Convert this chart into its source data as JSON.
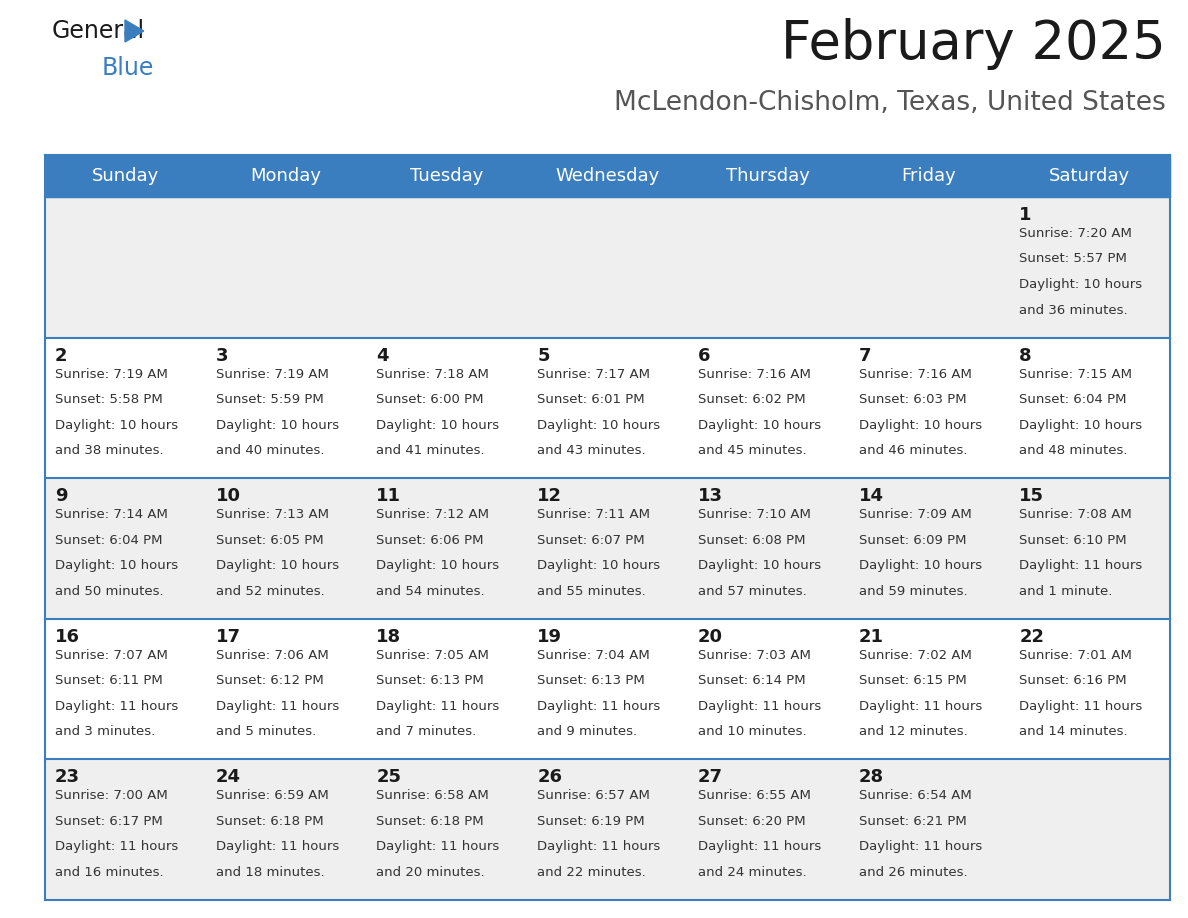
{
  "title": "February 2025",
  "subtitle": "McLendon-Chisholm, Texas, United States",
  "days_of_week": [
    "Sunday",
    "Monday",
    "Tuesday",
    "Wednesday",
    "Thursday",
    "Friday",
    "Saturday"
  ],
  "header_bg": "#3a7ebf",
  "header_text": "#ffffff",
  "cell_bg_odd": "#efefef",
  "cell_bg_even": "#ffffff",
  "cell_text": "#333333",
  "day_number_color": "#1a1a1a",
  "separator_color": "#3a7ebf",
  "calendar_data": [
    [
      null,
      null,
      null,
      null,
      null,
      null,
      {
        "day": 1,
        "sunrise": "7:20 AM",
        "sunset": "5:57 PM",
        "daylight": "10 hours and 36 minutes."
      }
    ],
    [
      {
        "day": 2,
        "sunrise": "7:19 AM",
        "sunset": "5:58 PM",
        "daylight": "10 hours and 38 minutes."
      },
      {
        "day": 3,
        "sunrise": "7:19 AM",
        "sunset": "5:59 PM",
        "daylight": "10 hours and 40 minutes."
      },
      {
        "day": 4,
        "sunrise": "7:18 AM",
        "sunset": "6:00 PM",
        "daylight": "10 hours and 41 minutes."
      },
      {
        "day": 5,
        "sunrise": "7:17 AM",
        "sunset": "6:01 PM",
        "daylight": "10 hours and 43 minutes."
      },
      {
        "day": 6,
        "sunrise": "7:16 AM",
        "sunset": "6:02 PM",
        "daylight": "10 hours and 45 minutes."
      },
      {
        "day": 7,
        "sunrise": "7:16 AM",
        "sunset": "6:03 PM",
        "daylight": "10 hours and 46 minutes."
      },
      {
        "day": 8,
        "sunrise": "7:15 AM",
        "sunset": "6:04 PM",
        "daylight": "10 hours and 48 minutes."
      }
    ],
    [
      {
        "day": 9,
        "sunrise": "7:14 AM",
        "sunset": "6:04 PM",
        "daylight": "10 hours and 50 minutes."
      },
      {
        "day": 10,
        "sunrise": "7:13 AM",
        "sunset": "6:05 PM",
        "daylight": "10 hours and 52 minutes."
      },
      {
        "day": 11,
        "sunrise": "7:12 AM",
        "sunset": "6:06 PM",
        "daylight": "10 hours and 54 minutes."
      },
      {
        "day": 12,
        "sunrise": "7:11 AM",
        "sunset": "6:07 PM",
        "daylight": "10 hours and 55 minutes."
      },
      {
        "day": 13,
        "sunrise": "7:10 AM",
        "sunset": "6:08 PM",
        "daylight": "10 hours and 57 minutes."
      },
      {
        "day": 14,
        "sunrise": "7:09 AM",
        "sunset": "6:09 PM",
        "daylight": "10 hours and 59 minutes."
      },
      {
        "day": 15,
        "sunrise": "7:08 AM",
        "sunset": "6:10 PM",
        "daylight": "11 hours and 1 minute."
      }
    ],
    [
      {
        "day": 16,
        "sunrise": "7:07 AM",
        "sunset": "6:11 PM",
        "daylight": "11 hours and 3 minutes."
      },
      {
        "day": 17,
        "sunrise": "7:06 AM",
        "sunset": "6:12 PM",
        "daylight": "11 hours and 5 minutes."
      },
      {
        "day": 18,
        "sunrise": "7:05 AM",
        "sunset": "6:13 PM",
        "daylight": "11 hours and 7 minutes."
      },
      {
        "day": 19,
        "sunrise": "7:04 AM",
        "sunset": "6:13 PM",
        "daylight": "11 hours and 9 minutes."
      },
      {
        "day": 20,
        "sunrise": "7:03 AM",
        "sunset": "6:14 PM",
        "daylight": "11 hours and 10 minutes."
      },
      {
        "day": 21,
        "sunrise": "7:02 AM",
        "sunset": "6:15 PM",
        "daylight": "11 hours and 12 minutes."
      },
      {
        "day": 22,
        "sunrise": "7:01 AM",
        "sunset": "6:16 PM",
        "daylight": "11 hours and 14 minutes."
      }
    ],
    [
      {
        "day": 23,
        "sunrise": "7:00 AM",
        "sunset": "6:17 PM",
        "daylight": "11 hours and 16 minutes."
      },
      {
        "day": 24,
        "sunrise": "6:59 AM",
        "sunset": "6:18 PM",
        "daylight": "11 hours and 18 minutes."
      },
      {
        "day": 25,
        "sunrise": "6:58 AM",
        "sunset": "6:18 PM",
        "daylight": "11 hours and 20 minutes."
      },
      {
        "day": 26,
        "sunrise": "6:57 AM",
        "sunset": "6:19 PM",
        "daylight": "11 hours and 22 minutes."
      },
      {
        "day": 27,
        "sunrise": "6:55 AM",
        "sunset": "6:20 PM",
        "daylight": "11 hours and 24 minutes."
      },
      {
        "day": 28,
        "sunrise": "6:54 AM",
        "sunset": "6:21 PM",
        "daylight": "11 hours and 26 minutes."
      },
      null
    ]
  ],
  "title_fontsize": 38,
  "subtitle_fontsize": 19,
  "header_fontsize": 13,
  "day_number_fontsize": 13,
  "cell_text_fontsize": 9.5
}
